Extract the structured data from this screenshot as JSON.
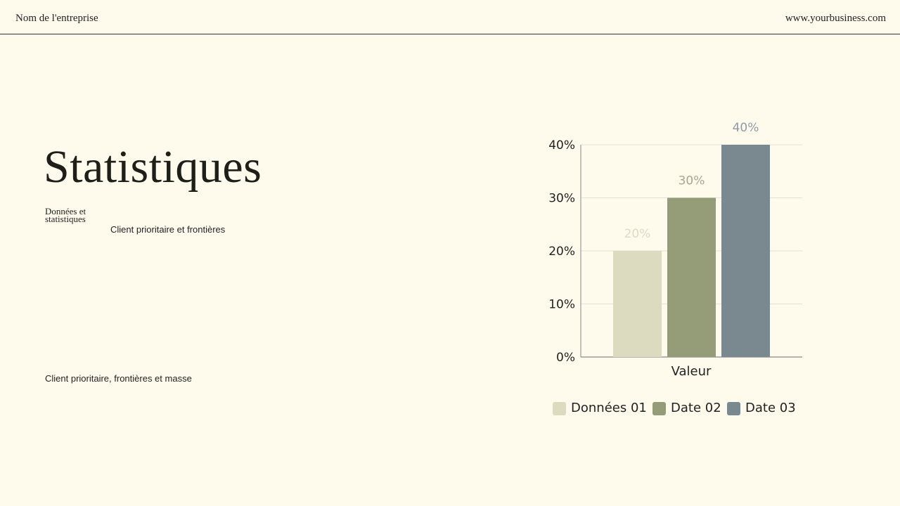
{
  "header": {
    "company": "Nom de l'entreprise",
    "website": "www.yourbusiness.com"
  },
  "main": {
    "title": "Statistiques",
    "subtitle": "Données et statistiques",
    "caption": "Client prioritaire et frontières",
    "footnote": "Client prioritaire, frontières et masse"
  },
  "chart_data": {
    "type": "bar",
    "categories": [
      "Valeur"
    ],
    "xlabel": "",
    "ylabel": "",
    "ylim": [
      0,
      40
    ],
    "yticks": [
      "0%",
      "10%",
      "20%",
      "30%",
      "40%"
    ],
    "grid": true,
    "legend_position": "bottom",
    "series": [
      {
        "name": "Données 01",
        "values": [
          20
        ],
        "label": "20%",
        "color": "#dcdbc0",
        "label_color": "#dcdac6"
      },
      {
        "name": "Date 02",
        "values": [
          30
        ],
        "label": "30%",
        "color": "#959c78",
        "label_color": "#a4a88f"
      },
      {
        "name": "Date 03",
        "values": [
          40
        ],
        "label": "40%",
        "color": "#7a8890",
        "label_color": "#8e9aa8"
      }
    ]
  }
}
